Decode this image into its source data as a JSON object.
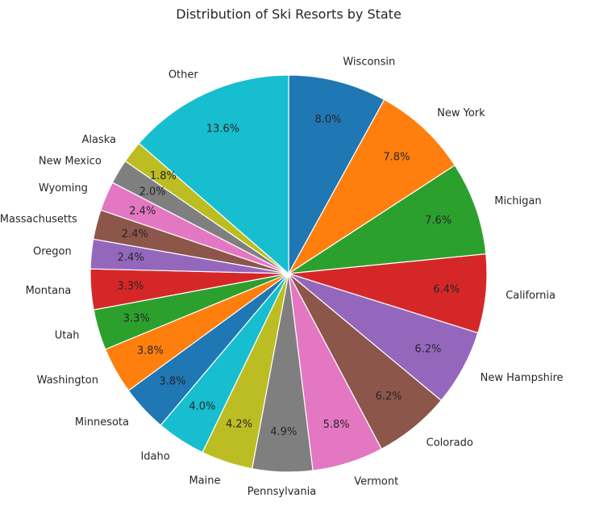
{
  "chart_data": {
    "type": "pie",
    "title": "Distribution of Ski Resorts by State",
    "start_angle_deg": 90,
    "direction": "clockwise",
    "slices": [
      {
        "label": "Wisconsin",
        "value": 8.0,
        "pct_label": "8.0%",
        "color": "#1f77b4"
      },
      {
        "label": "New York",
        "value": 7.8,
        "pct_label": "7.8%",
        "color": "#ff7f0e"
      },
      {
        "label": "Michigan",
        "value": 7.6,
        "pct_label": "7.6%",
        "color": "#2ca02c"
      },
      {
        "label": "California",
        "value": 6.4,
        "pct_label": "6.4%",
        "color": "#d62728"
      },
      {
        "label": "New Hampshire",
        "value": 6.2,
        "pct_label": "6.2%",
        "color": "#9467bd"
      },
      {
        "label": "Colorado",
        "value": 6.2,
        "pct_label": "6.2%",
        "color": "#8c564b"
      },
      {
        "label": "Vermont",
        "value": 5.8,
        "pct_label": "5.8%",
        "color": "#e377c2"
      },
      {
        "label": "Pennsylvania",
        "value": 4.9,
        "pct_label": "4.9%",
        "color": "#7f7f7f"
      },
      {
        "label": "Maine",
        "value": 4.2,
        "pct_label": "4.2%",
        "color": "#bcbd22"
      },
      {
        "label": "Idaho",
        "value": 4.0,
        "pct_label": "4.0%",
        "color": "#17becf"
      },
      {
        "label": "Minnesota",
        "value": 3.8,
        "pct_label": "3.8%",
        "color": "#1f77b4"
      },
      {
        "label": "Washington",
        "value": 3.8,
        "pct_label": "3.8%",
        "color": "#ff7f0e"
      },
      {
        "label": "Utah",
        "value": 3.3,
        "pct_label": "3.3%",
        "color": "#2ca02c"
      },
      {
        "label": "Montana",
        "value": 3.3,
        "pct_label": "3.3%",
        "color": "#d62728"
      },
      {
        "label": "Oregon",
        "value": 2.4,
        "pct_label": "2.4%",
        "color": "#9467bd"
      },
      {
        "label": "Massachusetts",
        "value": 2.4,
        "pct_label": "2.4%",
        "color": "#8c564b"
      },
      {
        "label": "Wyoming",
        "value": 2.4,
        "pct_label": "2.4%",
        "color": "#e377c2"
      },
      {
        "label": "New Mexico",
        "value": 2.0,
        "pct_label": "2.0%",
        "color": "#7f7f7f"
      },
      {
        "label": "Alaska",
        "value": 1.8,
        "pct_label": "1.8%",
        "color": "#bcbd22"
      },
      {
        "label": "Other",
        "value": 13.6,
        "pct_label": "13.6%",
        "color": "#17becf"
      }
    ]
  }
}
